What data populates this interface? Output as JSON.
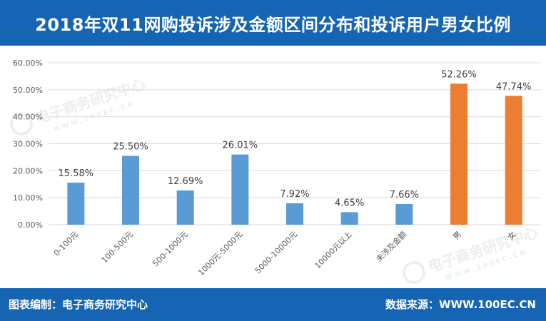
{
  "header": {
    "title": "2018年双11网购投诉涉及金额区间分布和投诉用户男女比例"
  },
  "footer": {
    "producer": "图表编制：电子商务研究中心",
    "source": "数据来源：WWW.100EC.CN"
  },
  "watermark": {
    "text": "电子商务研究中心",
    "url": "W W W . 1 0 0 E C . C N"
  },
  "colors": {
    "header_bg": "#1565b4",
    "blue_bar": "#5b9bd5",
    "orange_bar": "#ed7d31",
    "grid": "#d9d9d9",
    "axis_text": "#595959"
  },
  "chart_data": {
    "type": "bar",
    "categories": [
      "0-100元",
      "100-500元",
      "500-1000元",
      "1000元-5000元",
      "5000-10000元",
      "10000元以上",
      "未涉及金额",
      "男",
      "女"
    ],
    "values": [
      15.58,
      25.5,
      12.69,
      26.01,
      7.92,
      4.65,
      7.66,
      52.26,
      47.74
    ],
    "value_labels": [
      "15.58%",
      "25.50%",
      "12.69%",
      "26.01%",
      "7.92%",
      "4.65%",
      "7.66%",
      "52.26%",
      "47.74%"
    ],
    "bar_colors": [
      "#5b9bd5",
      "#5b9bd5",
      "#5b9bd5",
      "#5b9bd5",
      "#5b9bd5",
      "#5b9bd5",
      "#5b9bd5",
      "#ed7d31",
      "#ed7d31"
    ],
    "ylim": [
      0,
      60
    ],
    "yticks": [
      "0.00%",
      "10.00%",
      "20.00%",
      "30.00%",
      "40.00%",
      "50.00%",
      "60.00%"
    ],
    "grid": true,
    "legend": "none"
  }
}
